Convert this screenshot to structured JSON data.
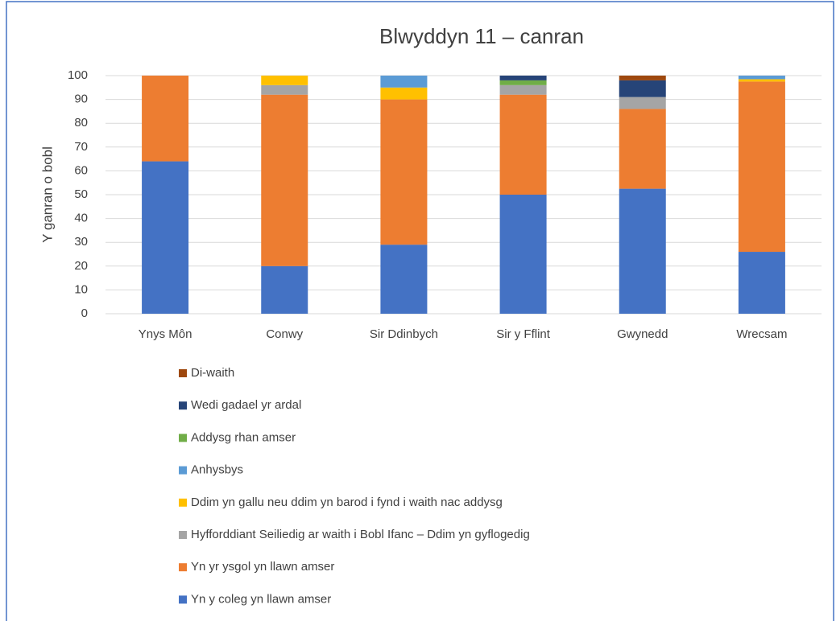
{
  "chart_data": {
    "type": "stacked_bar",
    "title": "Blwyddyn 11 – canran",
    "y_label": "Y ganran o bobl",
    "categories": [
      "Ynys Môn",
      "Conwy",
      "Sir Ddinbych",
      "Sir y Fflint",
      "Gwynedd",
      "Wrecsam"
    ],
    "series": [
      {
        "name": "Yn y coleg yn llawn amser",
        "color": "#4472c4",
        "values": [
          64,
          20,
          29,
          50,
          52.5,
          26
        ]
      },
      {
        "name": "Yn yr ysgol yn llawn amser",
        "color": "#ed7d31",
        "values": [
          36,
          72,
          61,
          42,
          33.5,
          71.5
        ]
      },
      {
        "name": "Hyfforddiant Seiliedig ar waith i Bobl Ifanc – Ddim yn gyflogedig",
        "color": "#a5a5a5",
        "values": [
          0,
          4,
          0,
          4,
          5,
          0
        ]
      },
      {
        "name": "Ddim yn gallu neu ddim yn barod i fynd i waith nac addysg",
        "color": "#ffc000",
        "values": [
          0,
          4,
          5,
          0,
          0,
          1
        ]
      },
      {
        "name": "Anhysbys",
        "color": "#5b9bd5",
        "values": [
          0,
          0,
          5,
          0,
          0,
          1.5
        ]
      },
      {
        "name": "Addysg rhan amser",
        "color": "#70ad47",
        "values": [
          0,
          0,
          0,
          2,
          0,
          0
        ]
      },
      {
        "name": "Wedi gadael yr ardal",
        "color": "#264478",
        "values": [
          0,
          0,
          0,
          2,
          7,
          0
        ]
      },
      {
        "name": "Di-waith",
        "color": "#9e480e",
        "values": [
          0,
          0,
          0,
          0,
          2,
          0
        ]
      }
    ],
    "ylim": [
      0,
      100
    ],
    "yticks": [
      0,
      10,
      20,
      30,
      40,
      50,
      60,
      70,
      80,
      90,
      100
    ],
    "grid": true
  }
}
